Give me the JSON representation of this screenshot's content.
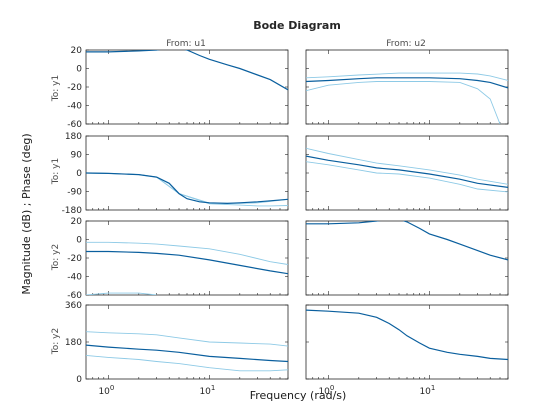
{
  "title": "Bode Diagram",
  "xlabel": "Frequency  (rad/s)",
  "ylabel": "Magnitude (dB) ; Phase (deg)",
  "columns": [
    "From: u1",
    "From: u2"
  ],
  "rows": [
    "To: y1",
    "To: y1",
    "To: y2",
    "To: y2"
  ],
  "colors": {
    "nominal": "#0a5f9e",
    "bounds": "#8ecae6",
    "axis": "#262626"
  },
  "chart_data": {
    "type": "line",
    "xscale": "log",
    "xlim": [
      0.6,
      60
    ],
    "xticks": [
      {
        "v": 1,
        "b": "10",
        "e": "0"
      },
      {
        "v": 10,
        "b": "10",
        "e": "1"
      }
    ],
    "row_axes": [
      {
        "kind": "magnitude",
        "ylim": [
          -60,
          20
        ],
        "yticks": [
          20,
          0,
          -20,
          -40,
          -60
        ]
      },
      {
        "kind": "phase",
        "ylim": [
          -180,
          180
        ],
        "yticks": [
          180,
          90,
          0,
          -90,
          -180
        ]
      },
      {
        "kind": "magnitude",
        "ylim": [
          -60,
          20
        ],
        "yticks": [
          20,
          0,
          -20,
          -40,
          -60
        ]
      },
      {
        "kind": "phase",
        "ylim": [
          0,
          360
        ],
        "yticks": [
          360,
          180,
          0
        ]
      }
    ],
    "panels": [
      {
        "row": 0,
        "col": 0,
        "series": [
          {
            "role": "nominal",
            "x": [
              0.6,
              1,
              2,
              3,
              4,
              5,
              6,
              8,
              10,
              15,
              20,
              30,
              40,
              60
            ],
            "y": [
              18,
              18,
              19,
              20,
              22,
              22,
              20,
              14,
              10,
              4,
              0,
              -7,
              -12,
              -23
            ]
          }
        ]
      },
      {
        "row": 0,
        "col": 1,
        "series": [
          {
            "role": "nominal",
            "x": [
              0.6,
              1,
              2,
              3,
              5,
              10,
              20,
              30,
              40,
              60
            ],
            "y": [
              -14,
              -13,
              -11,
              -10,
              -10,
              -10,
              -11,
              -13,
              -15,
              -21
            ]
          },
          {
            "role": "upper",
            "x": [
              0.6,
              1,
              2,
              5,
              10,
              20,
              30,
              40,
              60
            ],
            "y": [
              -10,
              -9,
              -7,
              -5,
              -5,
              -5,
              -6,
              -8,
              -13
            ]
          },
          {
            "role": "lower",
            "x": [
              0.6,
              1,
              2,
              3,
              5,
              10,
              20,
              30,
              40,
              50
            ],
            "y": [
              -24,
              -18,
              -15,
              -14,
              -14,
              -14,
              -15,
              -22,
              -33,
              -60
            ]
          }
        ]
      },
      {
        "row": 1,
        "col": 0,
        "series": [
          {
            "role": "nominal",
            "x": [
              0.6,
              1,
              2,
              3,
              4,
              5,
              6,
              8,
              10,
              15,
              20,
              30,
              40,
              60
            ],
            "y": [
              0,
              -2,
              -8,
              -20,
              -50,
              -100,
              -125,
              -140,
              -145,
              -148,
              -145,
              -140,
              -135,
              -128
            ]
          },
          {
            "role": "upper",
            "x": [
              0.6,
              1,
              2,
              3,
              5,
              10,
              20,
              30,
              40,
              60
            ],
            "y": [
              0,
              -2,
              -8,
              -20,
              -100,
              -146,
              -148,
              -145,
              -138,
              -128
            ]
          },
          {
            "role": "lower",
            "x": [
              0.6,
              1,
              2,
              3,
              5,
              10,
              20,
              30,
              40,
              60
            ],
            "y": [
              0,
              -2,
              -8,
              -20,
              -100,
              -150,
              -156,
              -160,
              -160,
              -158
            ]
          }
        ]
      },
      {
        "row": 1,
        "col": 1,
        "series": [
          {
            "role": "nominal",
            "x": [
              0.6,
              1,
              2,
              3,
              5,
              10,
              20,
              30,
              60
            ],
            "y": [
              82,
              62,
              40,
              25,
              15,
              -5,
              -30,
              -50,
              -70
            ]
          },
          {
            "role": "upper",
            "x": [
              0.6,
              1,
              2,
              3,
              5,
              10,
              20,
              30,
              60
            ],
            "y": [
              120,
              95,
              65,
              48,
              35,
              15,
              -10,
              -30,
              -55
            ]
          },
          {
            "role": "lower",
            "x": [
              0.6,
              1,
              2,
              3,
              5,
              10,
              20,
              30,
              60
            ],
            "y": [
              55,
              40,
              15,
              0,
              -5,
              -25,
              -55,
              -78,
              -92
            ]
          }
        ]
      },
      {
        "row": 2,
        "col": 0,
        "series": [
          {
            "role": "nominal",
            "x": [
              0.6,
              1,
              2,
              3,
              5,
              10,
              20,
              40,
              60
            ],
            "y": [
              -13,
              -13,
              -14,
              -15,
              -17,
              -22,
              -28,
              -34,
              -37
            ]
          },
          {
            "role": "upper",
            "x": [
              0.6,
              1,
              2,
              3,
              5,
              10,
              20,
              40,
              60
            ],
            "y": [
              -3,
              -3,
              -4,
              -5,
              -7,
              -10,
              -16,
              -24,
              -27
            ]
          },
          {
            "role": "lower",
            "x": [
              0.6,
              1,
              2,
              3
            ],
            "y": [
              -60,
              -58,
              -58,
              -60
            ]
          }
        ]
      },
      {
        "row": 2,
        "col": 1,
        "series": [
          {
            "role": "nominal",
            "x": [
              0.6,
              1,
              2,
              3,
              4,
              5,
              6,
              8,
              10,
              15,
              20,
              30,
              40,
              60
            ],
            "y": [
              17,
              17,
              18,
              20,
              22,
              22,
              19,
              12,
              6,
              0,
              -5,
              -12,
              -17,
              -22
            ]
          }
        ]
      },
      {
        "row": 3,
        "col": 0,
        "series": [
          {
            "role": "nominal",
            "x": [
              0.6,
              1,
              2,
              3,
              5,
              10,
              20,
              40,
              60
            ],
            "y": [
              165,
              155,
              145,
              140,
              130,
              110,
              100,
              90,
              85
            ]
          },
          {
            "role": "upper",
            "x": [
              0.6,
              1,
              2,
              3,
              5,
              10,
              20,
              40,
              60
            ],
            "y": [
              230,
              225,
              220,
              215,
              200,
              180,
              175,
              170,
              160
            ]
          },
          {
            "role": "lower",
            "x": [
              0.6,
              1,
              2,
              3,
              5,
              10,
              20,
              40,
              60
            ],
            "y": [
              115,
              105,
              95,
              85,
              75,
              55,
              40,
              40,
              45
            ]
          }
        ]
      },
      {
        "row": 3,
        "col": 1,
        "series": [
          {
            "role": "nominal",
            "x": [
              0.6,
              1,
              2,
              3,
              4,
              5,
              6,
              8,
              10,
              15,
              20,
              30,
              40,
              60
            ],
            "y": [
              335,
              330,
              320,
              300,
              270,
              240,
              210,
              175,
              150,
              130,
              120,
              110,
              100,
              95
            ]
          }
        ]
      }
    ]
  }
}
